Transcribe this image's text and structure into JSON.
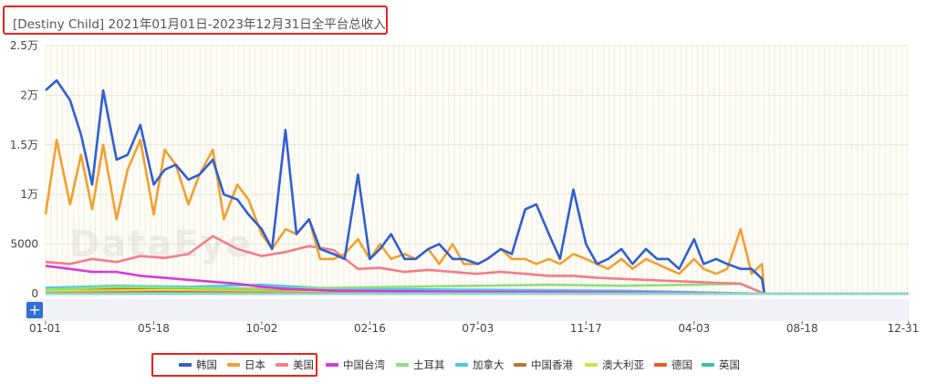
{
  "title": "[Destiny Child]  2021年01月01日-2023年12月31日全平台总收入",
  "zoom_label": "+",
  "chart_data": {
    "type": "line",
    "title": "[Destiny Child]  2021年01月01日-2023年12月31日全平台总收入",
    "xlabel": "",
    "ylabel": "",
    "x_tick_labels": [
      "01-01",
      "05-18",
      "10-02",
      "02-16",
      "07-03",
      "11-17",
      "04-03",
      "08-18",
      "12-31"
    ],
    "x_tick_dates": [
      "2021-01-01",
      "2021-05-18",
      "2021-10-02",
      "2022-02-16",
      "2022-07-03",
      "2022-11-17",
      "2023-04-03",
      "2023-08-18",
      "2023-12-31"
    ],
    "y_tick_labels": [
      "0",
      "5000",
      "1万",
      "1.5万",
      "2万",
      "2.5万"
    ],
    "ylim": [
      0,
      25000
    ],
    "x_range": [
      "2021-01-01",
      "2023-12-31"
    ],
    "grid": true,
    "legend_position": "bottom",
    "series": [
      {
        "name": "韩国",
        "color": "#2f5fd3",
        "dates": [
          "2021-01-01",
          "2021-01-15",
          "2021-02-01",
          "2021-02-15",
          "2021-03-01",
          "2021-03-15",
          "2021-04-01",
          "2021-04-15",
          "2021-05-01",
          "2021-05-18",
          "2021-06-01",
          "2021-06-15",
          "2021-07-01",
          "2021-07-15",
          "2021-08-01",
          "2021-08-15",
          "2021-09-01",
          "2021-09-15",
          "2021-10-02",
          "2021-10-15",
          "2021-11-01",
          "2021-11-15",
          "2021-12-01",
          "2021-12-15",
          "2022-01-01",
          "2022-01-15",
          "2022-02-01",
          "2022-02-16",
          "2022-03-01",
          "2022-03-15",
          "2022-04-01",
          "2022-04-15",
          "2022-05-01",
          "2022-05-15",
          "2022-06-01",
          "2022-06-15",
          "2022-07-03",
          "2022-07-15",
          "2022-08-01",
          "2022-08-15",
          "2022-09-01",
          "2022-09-15",
          "2022-10-01",
          "2022-10-15",
          "2022-11-01",
          "2022-11-17",
          "2022-12-01",
          "2022-12-15",
          "2023-01-01",
          "2023-01-15",
          "2023-02-01",
          "2023-02-15",
          "2023-03-01",
          "2023-03-15",
          "2023-04-03",
          "2023-04-15",
          "2023-05-01",
          "2023-05-15",
          "2023-06-01",
          "2023-06-15",
          "2023-06-28",
          "2023-07-01",
          "2023-07-15"
        ],
        "values": [
          20500,
          21500,
          19500,
          16000,
          11000,
          20500,
          13500,
          14000,
          17000,
          11000,
          12500,
          13000,
          11500,
          12000,
          13500,
          10000,
          9500,
          8000,
          6500,
          4500,
          16500,
          6000,
          7500,
          4500,
          4000,
          3500,
          12000,
          3500,
          4500,
          6000,
          3500,
          3500,
          4500,
          5000,
          3500,
          3500,
          3000,
          3500,
          4500,
          4000,
          8500,
          9000,
          6000,
          3500,
          10500,
          5000,
          3000,
          3500,
          4500,
          3000,
          4500,
          3500,
          3500,
          2500,
          5500,
          3000,
          3500,
          3000,
          2500,
          2500,
          1500,
          0,
          0
        ]
      },
      {
        "name": "日本",
        "color": "#f0a030",
        "dates": [
          "2021-01-01",
          "2021-01-15",
          "2021-02-01",
          "2021-02-15",
          "2021-03-01",
          "2021-03-15",
          "2021-04-01",
          "2021-04-15",
          "2021-05-01",
          "2021-05-18",
          "2021-06-01",
          "2021-06-15",
          "2021-07-01",
          "2021-07-15",
          "2021-08-01",
          "2021-08-15",
          "2021-09-01",
          "2021-09-15",
          "2021-10-02",
          "2021-10-15",
          "2021-11-01",
          "2021-11-15",
          "2021-12-01",
          "2021-12-15",
          "2022-01-01",
          "2022-01-15",
          "2022-02-01",
          "2022-02-16",
          "2022-03-01",
          "2022-03-15",
          "2022-04-01",
          "2022-04-15",
          "2022-05-01",
          "2022-05-15",
          "2022-06-01",
          "2022-06-15",
          "2022-07-03",
          "2022-07-15",
          "2022-08-01",
          "2022-08-15",
          "2022-09-01",
          "2022-09-15",
          "2022-10-01",
          "2022-10-15",
          "2022-11-01",
          "2022-11-17",
          "2022-12-01",
          "2022-12-15",
          "2023-01-01",
          "2023-01-15",
          "2023-02-01",
          "2023-02-15",
          "2023-03-01",
          "2023-03-15",
          "2023-04-03",
          "2023-04-15",
          "2023-05-01",
          "2023-05-15",
          "2023-06-01",
          "2023-06-15",
          "2023-06-28",
          "2023-07-01",
          "2023-07-15"
        ],
        "values": [
          8000,
          15500,
          9000,
          14000,
          8500,
          15000,
          7500,
          12500,
          15500,
          8000,
          14500,
          13000,
          9000,
          12000,
          14500,
          7500,
          11000,
          9500,
          6000,
          4500,
          6500,
          6000,
          7500,
          3500,
          3500,
          4000,
          5500,
          3500,
          5000,
          3500,
          4000,
          3500,
          4500,
          3000,
          5000,
          3000,
          3000,
          3500,
          4500,
          3500,
          3500,
          3000,
          3500,
          3000,
          4000,
          3500,
          3000,
          2500,
          3500,
          2500,
          3500,
          3000,
          2500,
          2000,
          3500,
          2500,
          2000,
          2500,
          6500,
          2000,
          3000,
          0,
          0
        ]
      },
      {
        "name": "美国",
        "color": "#f47c8a",
        "dates": [
          "2021-01-01",
          "2021-02-01",
          "2021-03-01",
          "2021-04-01",
          "2021-05-01",
          "2021-06-01",
          "2021-07-01",
          "2021-08-01",
          "2021-09-01",
          "2021-10-02",
          "2021-11-01",
          "2021-12-01",
          "2022-01-01",
          "2022-02-01",
          "2022-03-01",
          "2022-04-01",
          "2022-05-01",
          "2022-06-01",
          "2022-07-01",
          "2022-08-01",
          "2022-09-01",
          "2022-10-01",
          "2022-11-01",
          "2022-12-01",
          "2023-01-01",
          "2023-02-01",
          "2023-03-01",
          "2023-04-01",
          "2023-05-01",
          "2023-06-01",
          "2023-07-01",
          "2023-07-15"
        ],
        "values": [
          3200,
          3000,
          3500,
          3200,
          3800,
          3600,
          4000,
          5800,
          4500,
          3800,
          4200,
          4800,
          4400,
          2500,
          2600,
          2200,
          2400,
          2200,
          2000,
          2200,
          2000,
          1800,
          1800,
          1600,
          1500,
          1400,
          1300,
          1200,
          1100,
          1000,
          0,
          0
        ]
      },
      {
        "name": "中国台湾",
        "color": "#d63bd6",
        "dates": [
          "2021-01-01",
          "2021-02-01",
          "2021-03-01",
          "2021-04-01",
          "2021-05-01",
          "2021-06-01",
          "2021-07-01",
          "2021-08-01",
          "2021-09-01",
          "2021-10-02",
          "2021-11-01",
          "2022-01-01",
          "2022-06-01",
          "2023-01-01",
          "2023-07-01",
          "2023-07-15"
        ],
        "values": [
          2800,
          2500,
          2200,
          2200,
          1800,
          1600,
          1400,
          1200,
          1000,
          700,
          500,
          300,
          200,
          150,
          0,
          0
        ]
      },
      {
        "name": "土耳其",
        "color": "#8fe07a",
        "dates": [
          "2021-01-01",
          "2021-04-01",
          "2021-07-01",
          "2021-10-02",
          "2022-01-01",
          "2022-04-01",
          "2022-07-01",
          "2022-10-01",
          "2023-01-01",
          "2023-04-01",
          "2023-06-01",
          "2023-07-01",
          "2023-07-15"
        ],
        "values": [
          400,
          700,
          600,
          500,
          600,
          700,
          800,
          900,
          800,
          900,
          1000,
          0,
          0
        ]
      },
      {
        "name": "加拿大",
        "color": "#4fc8e8",
        "dates": [
          "2021-01-01",
          "2021-04-01",
          "2021-07-01",
          "2021-10-02",
          "2022-01-01",
          "2022-07-01",
          "2023-01-01",
          "2023-07-01",
          "2023-07-15"
        ],
        "values": [
          600,
          800,
          700,
          900,
          500,
          400,
          300,
          0,
          0
        ]
      },
      {
        "name": "中国香港",
        "color": "#b8763a",
        "dates": [
          "2021-01-01",
          "2021-06-01",
          "2021-12-01",
          "2022-06-01",
          "2023-01-01",
          "2023-07-01",
          "2023-07-15"
        ],
        "values": [
          500,
          600,
          400,
          300,
          200,
          0,
          0
        ]
      },
      {
        "name": "澳大利亚",
        "color": "#c8e84a",
        "dates": [
          "2021-01-01",
          "2021-06-01",
          "2021-12-01",
          "2022-06-01",
          "2023-01-01",
          "2023-07-01",
          "2023-07-15"
        ],
        "values": [
          300,
          400,
          300,
          250,
          200,
          0,
          0
        ]
      },
      {
        "name": "德国",
        "color": "#ee5a1e",
        "dates": [
          "2021-01-01",
          "2021-06-01",
          "2021-12-01",
          "2022-06-01",
          "2023-01-01",
          "2023-07-01",
          "2023-07-15"
        ],
        "values": [
          200,
          300,
          200,
          150,
          100,
          0,
          0
        ]
      },
      {
        "name": "英国",
        "color": "#3bbfa8",
        "dates": [
          "2021-01-01",
          "2021-06-01",
          "2021-12-01",
          "2022-06-01",
          "2023-01-01",
          "2023-07-01",
          "2023-12-31"
        ],
        "values": [
          150,
          200,
          150,
          100,
          80,
          0,
          0
        ]
      }
    ]
  }
}
